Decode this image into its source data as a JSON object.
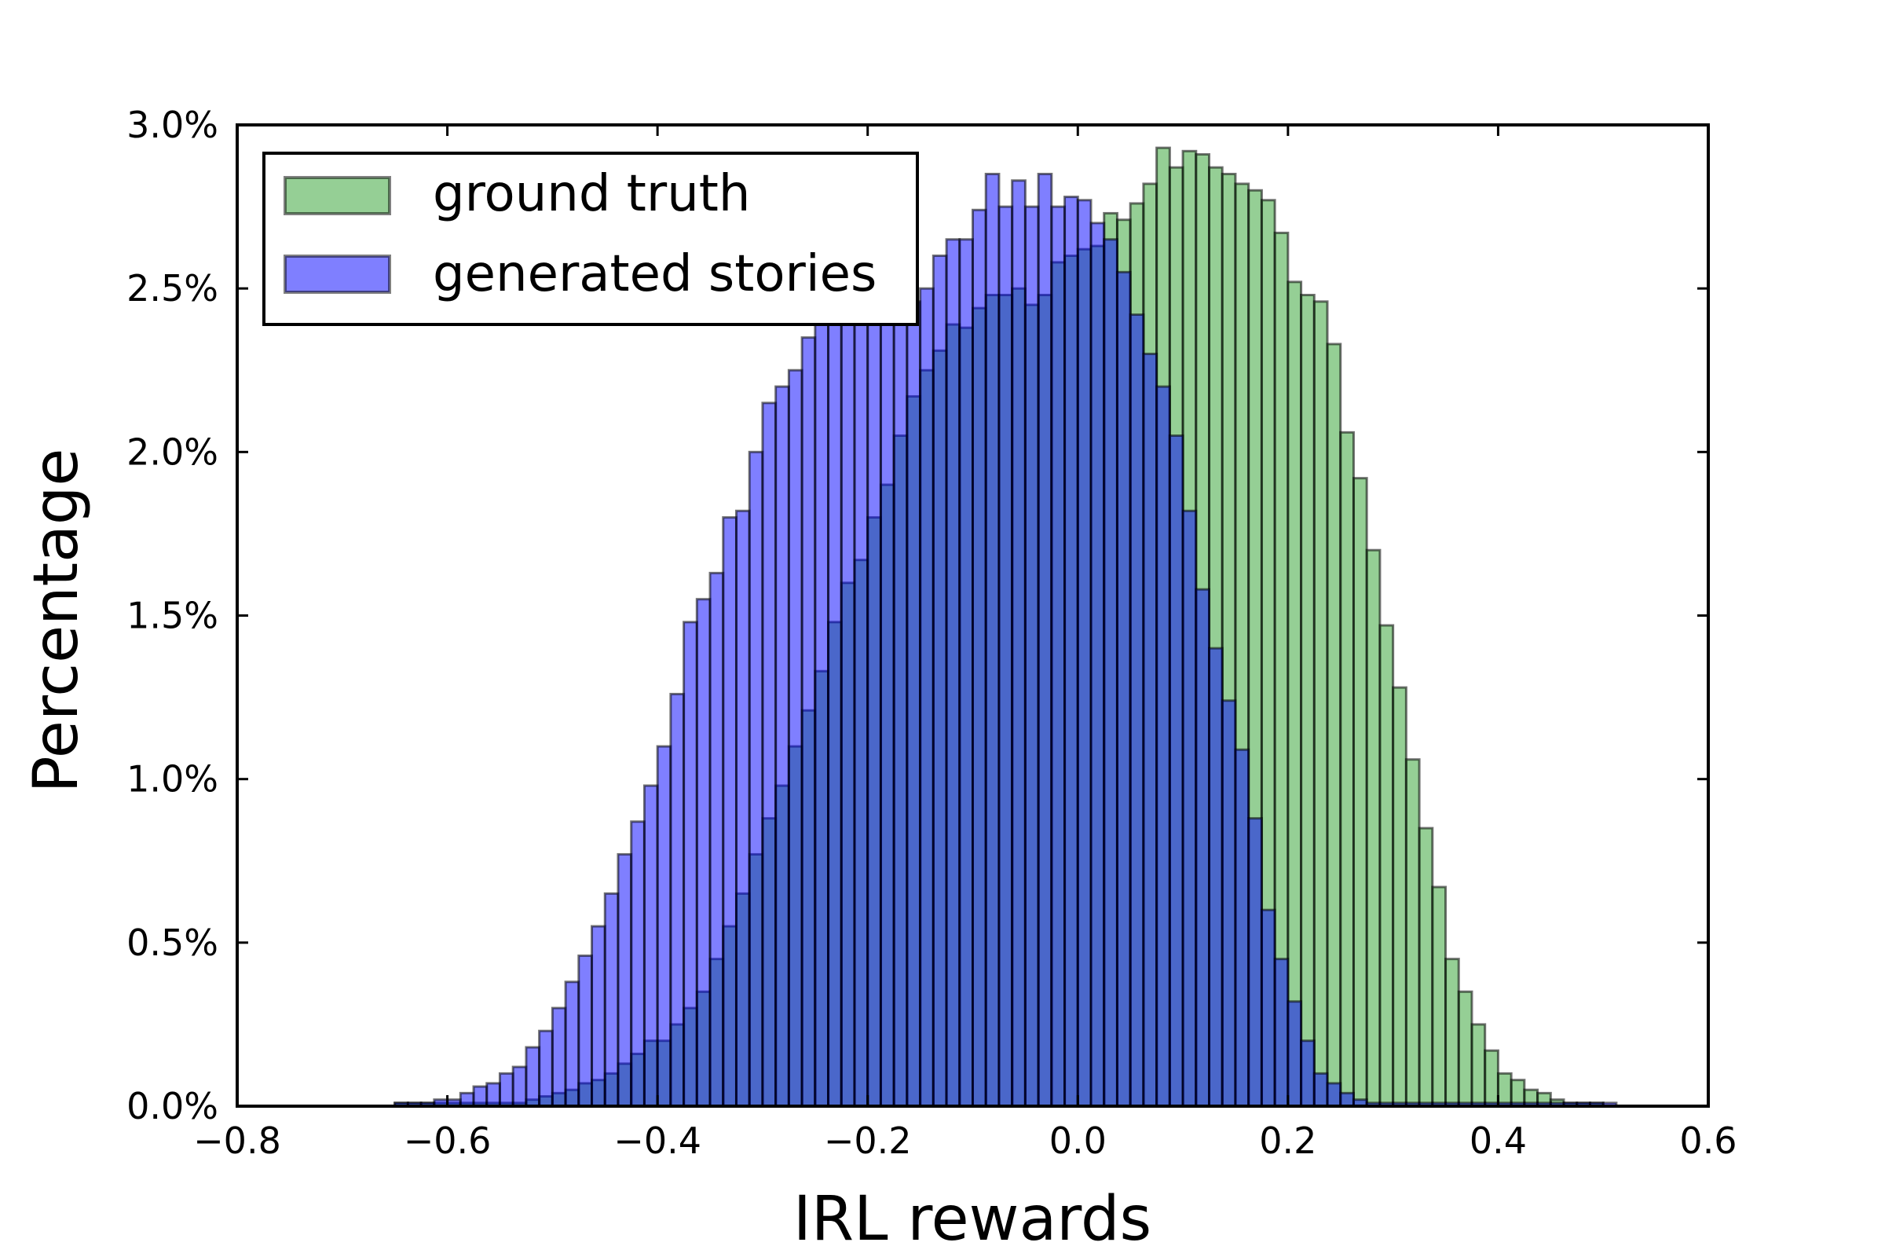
{
  "chart_data": {
    "type": "histogram",
    "xlabel": "IRL rewards",
    "ylabel": "Percentage",
    "xlim": [
      -0.8,
      0.6
    ],
    "ylim": [
      0.0,
      3.0
    ],
    "x_ticks": [
      "−0.8",
      "−0.6",
      "−0.4",
      "−0.2",
      "0.0",
      "0.2",
      "0.4",
      "0.6"
    ],
    "y_ticks": [
      "0.0%",
      "0.5%",
      "1.0%",
      "1.5%",
      "2.0%",
      "2.5%",
      "3.0%"
    ],
    "legend_position": "upper-left",
    "bin_width": 0.0125,
    "bin_start": -0.65,
    "series": [
      {
        "name": "ground truth",
        "color": "#2ca02c",
        "values": [
          0.01,
          0.01,
          0.01,
          0.01,
          0.01,
          0.01,
          0.01,
          0.01,
          0.01,
          0.01,
          0.02,
          0.03,
          0.04,
          0.05,
          0.07,
          0.08,
          0.1,
          0.13,
          0.16,
          0.2,
          0.2,
          0.25,
          0.3,
          0.35,
          0.45,
          0.55,
          0.65,
          0.77,
          0.88,
          0.98,
          1.1,
          1.21,
          1.33,
          1.48,
          1.6,
          1.67,
          1.8,
          1.9,
          2.05,
          2.17,
          2.25,
          2.31,
          2.39,
          2.38,
          2.44,
          2.48,
          2.48,
          2.5,
          2.45,
          2.48,
          2.58,
          2.6,
          2.62,
          2.63,
          2.73,
          2.71,
          2.76,
          2.82,
          2.93,
          2.87,
          2.92,
          2.91,
          2.87,
          2.85,
          2.82,
          2.8,
          2.77,
          2.67,
          2.52,
          2.48,
          2.46,
          2.33,
          2.06,
          1.92,
          1.7,
          1.47,
          1.28,
          1.06,
          0.85,
          0.67,
          0.45,
          0.35,
          0.25,
          0.17,
          0.1,
          0.08,
          0.05,
          0.04,
          0.02,
          0.01,
          0.01,
          0.01
        ]
      },
      {
        "name": "generated stories",
        "color": "#0000ff",
        "values": [
          0.01,
          0.01,
          0.01,
          0.02,
          0.02,
          0.04,
          0.06,
          0.07,
          0.1,
          0.12,
          0.18,
          0.23,
          0.3,
          0.38,
          0.46,
          0.55,
          0.65,
          0.77,
          0.87,
          0.98,
          1.1,
          1.26,
          1.48,
          1.55,
          1.63,
          1.8,
          1.82,
          2.0,
          2.15,
          2.2,
          2.25,
          2.35,
          2.41,
          2.46,
          2.48,
          2.49,
          2.48,
          2.44,
          2.42,
          2.46,
          2.5,
          2.6,
          2.65,
          2.65,
          2.74,
          2.85,
          2.75,
          2.83,
          2.75,
          2.85,
          2.75,
          2.78,
          2.77,
          2.7,
          2.65,
          2.55,
          2.42,
          2.3,
          2.2,
          2.05,
          1.82,
          1.58,
          1.4,
          1.24,
          1.09,
          0.88,
          0.6,
          0.45,
          0.32,
          0.2,
          0.1,
          0.07,
          0.04,
          0.02,
          0.01,
          0.01,
          0.01,
          0.01,
          0.01,
          0.01,
          0.01,
          0.01,
          0.01,
          0.01,
          0.01,
          0.01,
          0.01,
          0.01,
          0.01,
          0.01,
          0.01,
          0.01,
          0.01
        ]
      }
    ]
  }
}
